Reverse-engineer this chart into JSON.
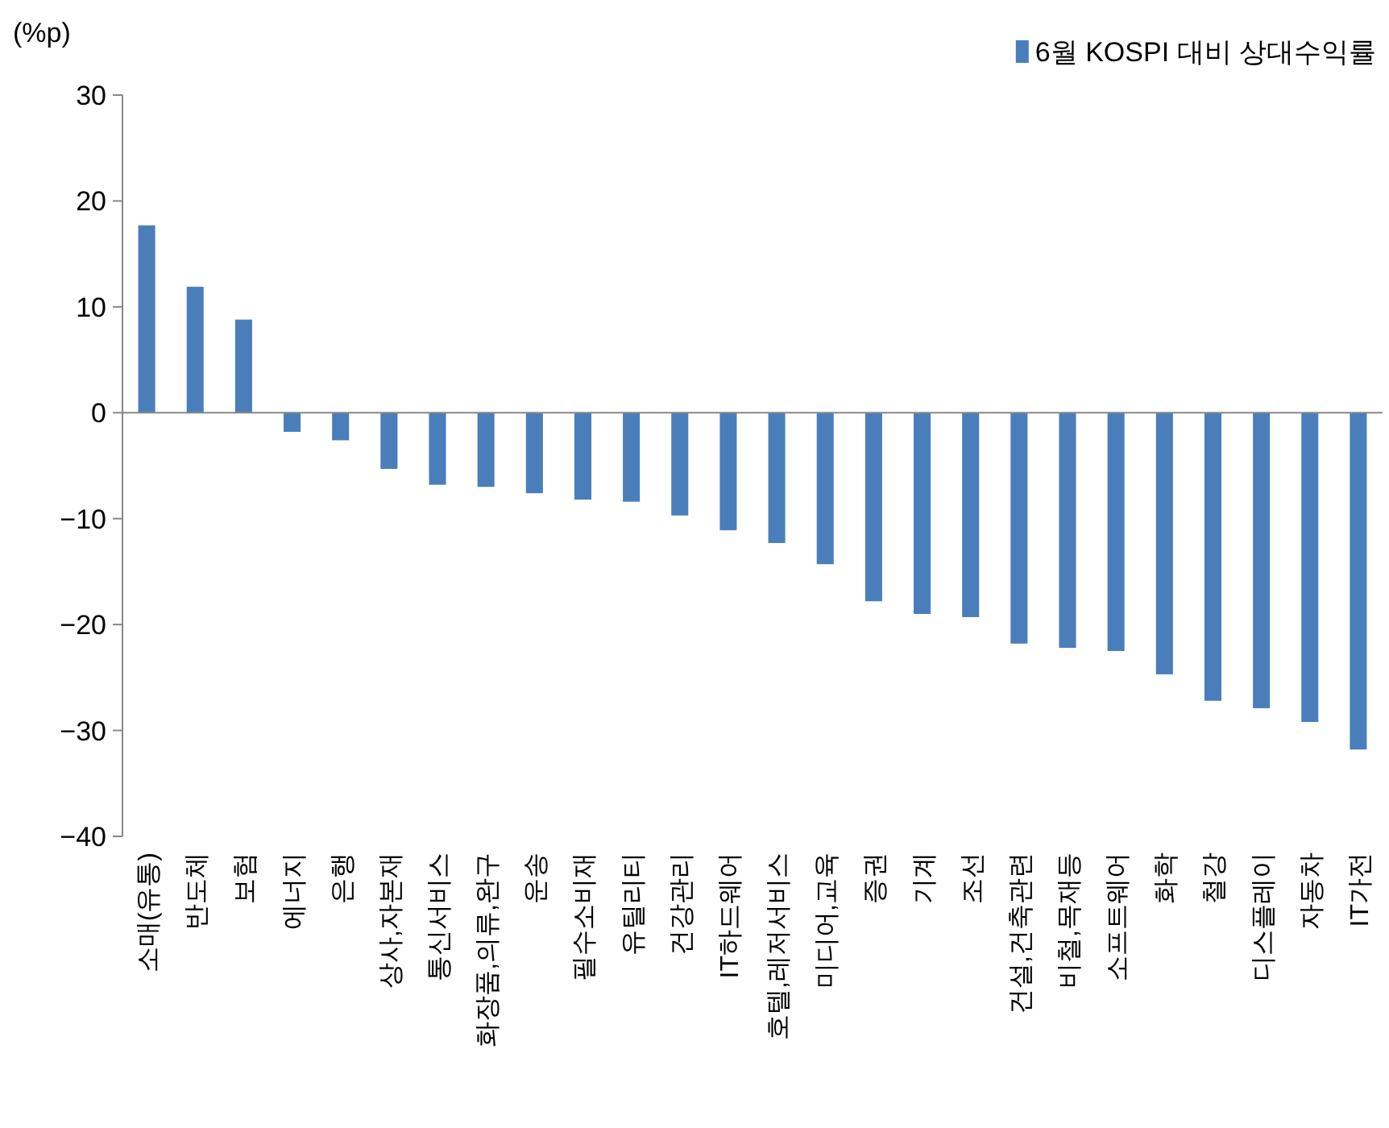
{
  "chart_data": {
    "type": "bar",
    "ylabel": "(%p)",
    "categories": [
      "소매(유통)",
      "반도체",
      "보험",
      "에너지",
      "은행",
      "상사,자본재",
      "통신서비스",
      "화장품,의류,완구",
      "운송",
      "필수소비재",
      "유틸리티",
      "건강관리",
      "IT하드웨어",
      "호텔,레저서비스",
      "미디어,교육",
      "증권",
      "기계",
      "조선",
      "건설,건축관련",
      "비철,목재등",
      "소프트웨어",
      "화학",
      "철강",
      "디스플레이",
      "자동차",
      "IT가전"
    ],
    "series": [
      {
        "name": "6월 KOSPI 대비 상대수익률",
        "color": "#4a7ebb",
        "values": [
          17.7,
          11.9,
          8.8,
          -1.8,
          -2.6,
          -5.3,
          -6.8,
          -7.0,
          -7.6,
          -8.2,
          -8.4,
          -9.7,
          -11.1,
          -12.3,
          -14.3,
          -17.8,
          -19.0,
          -19.3,
          -21.8,
          -22.2,
          -22.5,
          -24.7,
          -27.2,
          -27.9,
          -29.2,
          -31.8
        ]
      }
    ],
    "ylim": [
      -40,
      30
    ],
    "yticks": [
      -40,
      -30,
      -20,
      -10,
      0,
      10,
      20,
      30
    ],
    "legend": "top right"
  }
}
